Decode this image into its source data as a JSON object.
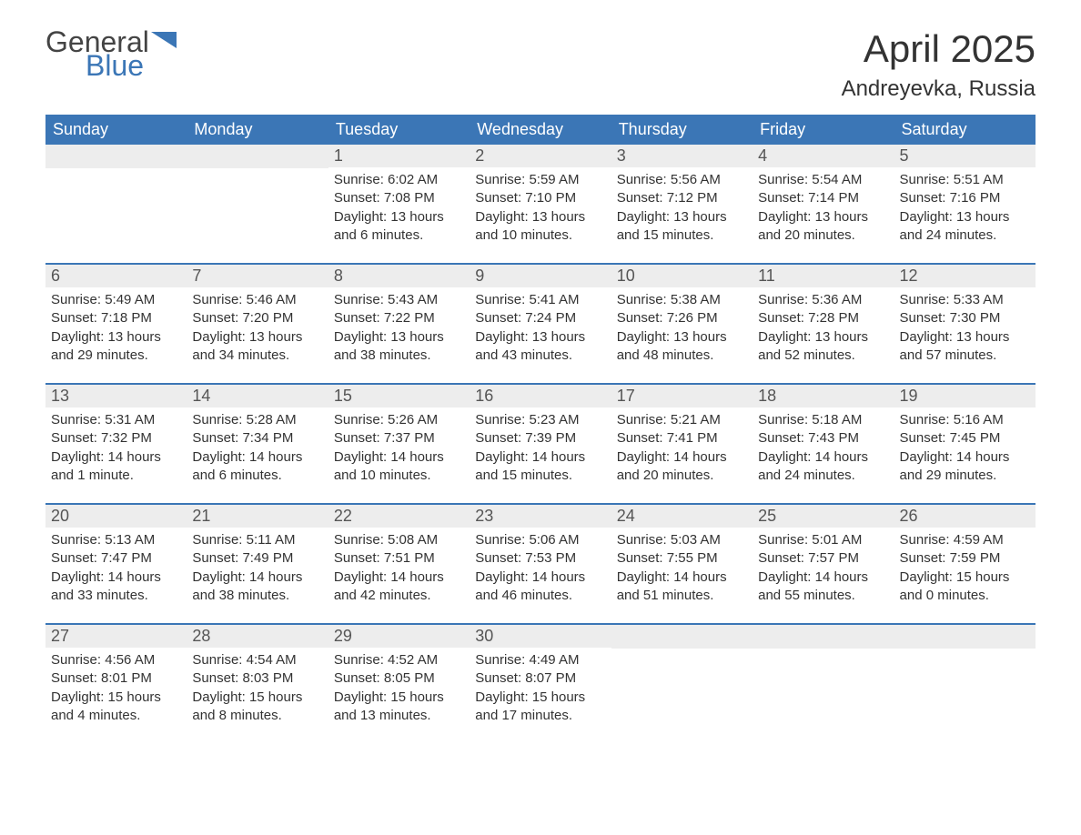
{
  "logo": {
    "text_general": "General",
    "text_blue": "Blue",
    "icon_color": "#3b76b6",
    "text_color_general": "#444444",
    "text_color_blue": "#3b76b6"
  },
  "title": "April 2025",
  "location": "Andreyevka, Russia",
  "colors": {
    "header_bg": "#3b76b6",
    "header_text": "#ffffff",
    "daynum_bg": "#ededed",
    "daynum_text": "#555555",
    "body_text": "#333333",
    "row_border": "#3b76b6",
    "page_bg": "#ffffff"
  },
  "typography": {
    "title_fontsize": 42,
    "location_fontsize": 24,
    "weekday_fontsize": 18,
    "daynum_fontsize": 18,
    "content_fontsize": 15,
    "font_family": "Arial"
  },
  "layout": {
    "columns": 7,
    "rows": 5,
    "cell_min_height": 130
  },
  "weekdays": [
    "Sunday",
    "Monday",
    "Tuesday",
    "Wednesday",
    "Thursday",
    "Friday",
    "Saturday"
  ],
  "weeks": [
    [
      {
        "day": null
      },
      {
        "day": null
      },
      {
        "day": "1",
        "sunrise": "Sunrise: 6:02 AM",
        "sunset": "Sunset: 7:08 PM",
        "daylight": "Daylight: 13 hours and 6 minutes."
      },
      {
        "day": "2",
        "sunrise": "Sunrise: 5:59 AM",
        "sunset": "Sunset: 7:10 PM",
        "daylight": "Daylight: 13 hours and 10 minutes."
      },
      {
        "day": "3",
        "sunrise": "Sunrise: 5:56 AM",
        "sunset": "Sunset: 7:12 PM",
        "daylight": "Daylight: 13 hours and 15 minutes."
      },
      {
        "day": "4",
        "sunrise": "Sunrise: 5:54 AM",
        "sunset": "Sunset: 7:14 PM",
        "daylight": "Daylight: 13 hours and 20 minutes."
      },
      {
        "day": "5",
        "sunrise": "Sunrise: 5:51 AM",
        "sunset": "Sunset: 7:16 PM",
        "daylight": "Daylight: 13 hours and 24 minutes."
      }
    ],
    [
      {
        "day": "6",
        "sunrise": "Sunrise: 5:49 AM",
        "sunset": "Sunset: 7:18 PM",
        "daylight": "Daylight: 13 hours and 29 minutes."
      },
      {
        "day": "7",
        "sunrise": "Sunrise: 5:46 AM",
        "sunset": "Sunset: 7:20 PM",
        "daylight": "Daylight: 13 hours and 34 minutes."
      },
      {
        "day": "8",
        "sunrise": "Sunrise: 5:43 AM",
        "sunset": "Sunset: 7:22 PM",
        "daylight": "Daylight: 13 hours and 38 minutes."
      },
      {
        "day": "9",
        "sunrise": "Sunrise: 5:41 AM",
        "sunset": "Sunset: 7:24 PM",
        "daylight": "Daylight: 13 hours and 43 minutes."
      },
      {
        "day": "10",
        "sunrise": "Sunrise: 5:38 AM",
        "sunset": "Sunset: 7:26 PM",
        "daylight": "Daylight: 13 hours and 48 minutes."
      },
      {
        "day": "11",
        "sunrise": "Sunrise: 5:36 AM",
        "sunset": "Sunset: 7:28 PM",
        "daylight": "Daylight: 13 hours and 52 minutes."
      },
      {
        "day": "12",
        "sunrise": "Sunrise: 5:33 AM",
        "sunset": "Sunset: 7:30 PM",
        "daylight": "Daylight: 13 hours and 57 minutes."
      }
    ],
    [
      {
        "day": "13",
        "sunrise": "Sunrise: 5:31 AM",
        "sunset": "Sunset: 7:32 PM",
        "daylight": "Daylight: 14 hours and 1 minute."
      },
      {
        "day": "14",
        "sunrise": "Sunrise: 5:28 AM",
        "sunset": "Sunset: 7:34 PM",
        "daylight": "Daylight: 14 hours and 6 minutes."
      },
      {
        "day": "15",
        "sunrise": "Sunrise: 5:26 AM",
        "sunset": "Sunset: 7:37 PM",
        "daylight": "Daylight: 14 hours and 10 minutes."
      },
      {
        "day": "16",
        "sunrise": "Sunrise: 5:23 AM",
        "sunset": "Sunset: 7:39 PM",
        "daylight": "Daylight: 14 hours and 15 minutes."
      },
      {
        "day": "17",
        "sunrise": "Sunrise: 5:21 AM",
        "sunset": "Sunset: 7:41 PM",
        "daylight": "Daylight: 14 hours and 20 minutes."
      },
      {
        "day": "18",
        "sunrise": "Sunrise: 5:18 AM",
        "sunset": "Sunset: 7:43 PM",
        "daylight": "Daylight: 14 hours and 24 minutes."
      },
      {
        "day": "19",
        "sunrise": "Sunrise: 5:16 AM",
        "sunset": "Sunset: 7:45 PM",
        "daylight": "Daylight: 14 hours and 29 minutes."
      }
    ],
    [
      {
        "day": "20",
        "sunrise": "Sunrise: 5:13 AM",
        "sunset": "Sunset: 7:47 PM",
        "daylight": "Daylight: 14 hours and 33 minutes."
      },
      {
        "day": "21",
        "sunrise": "Sunrise: 5:11 AM",
        "sunset": "Sunset: 7:49 PM",
        "daylight": "Daylight: 14 hours and 38 minutes."
      },
      {
        "day": "22",
        "sunrise": "Sunrise: 5:08 AM",
        "sunset": "Sunset: 7:51 PM",
        "daylight": "Daylight: 14 hours and 42 minutes."
      },
      {
        "day": "23",
        "sunrise": "Sunrise: 5:06 AM",
        "sunset": "Sunset: 7:53 PM",
        "daylight": "Daylight: 14 hours and 46 minutes."
      },
      {
        "day": "24",
        "sunrise": "Sunrise: 5:03 AM",
        "sunset": "Sunset: 7:55 PM",
        "daylight": "Daylight: 14 hours and 51 minutes."
      },
      {
        "day": "25",
        "sunrise": "Sunrise: 5:01 AM",
        "sunset": "Sunset: 7:57 PM",
        "daylight": "Daylight: 14 hours and 55 minutes."
      },
      {
        "day": "26",
        "sunrise": "Sunrise: 4:59 AM",
        "sunset": "Sunset: 7:59 PM",
        "daylight": "Daylight: 15 hours and 0 minutes."
      }
    ],
    [
      {
        "day": "27",
        "sunrise": "Sunrise: 4:56 AM",
        "sunset": "Sunset: 8:01 PM",
        "daylight": "Daylight: 15 hours and 4 minutes."
      },
      {
        "day": "28",
        "sunrise": "Sunrise: 4:54 AM",
        "sunset": "Sunset: 8:03 PM",
        "daylight": "Daylight: 15 hours and 8 minutes."
      },
      {
        "day": "29",
        "sunrise": "Sunrise: 4:52 AM",
        "sunset": "Sunset: 8:05 PM",
        "daylight": "Daylight: 15 hours and 13 minutes."
      },
      {
        "day": "30",
        "sunrise": "Sunrise: 4:49 AM",
        "sunset": "Sunset: 8:07 PM",
        "daylight": "Daylight: 15 hours and 17 minutes."
      },
      {
        "day": null
      },
      {
        "day": null
      },
      {
        "day": null
      }
    ]
  ]
}
